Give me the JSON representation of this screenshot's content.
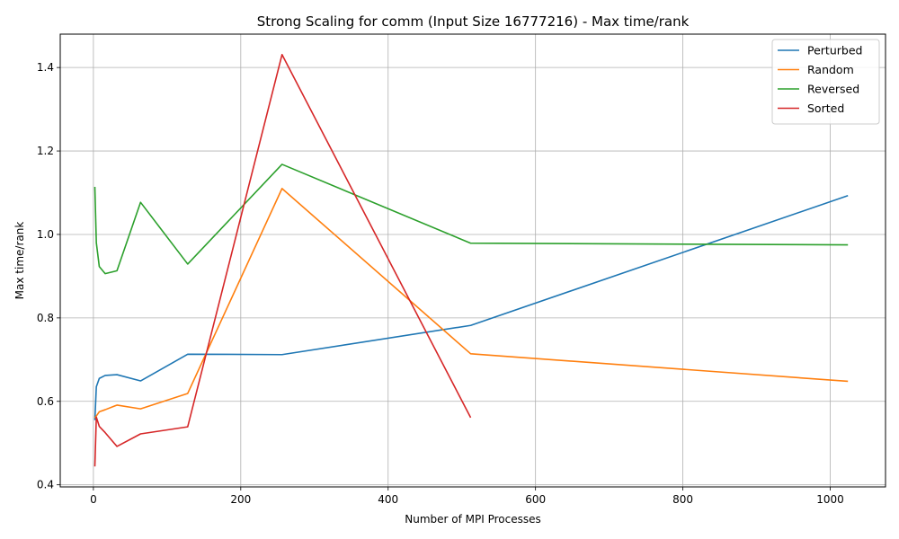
{
  "chart_data": {
    "type": "line",
    "title": "Strong Scaling for comm (Input Size 16777216) - Max time/rank",
    "xlabel": "Number of MPI Processes",
    "ylabel": "Max time/rank",
    "xlim": [
      -45,
      1075
    ],
    "ylim": [
      0.395,
      1.48
    ],
    "xticks": [
      0,
      200,
      400,
      600,
      800,
      1000
    ],
    "yticks": [
      0.4,
      0.6,
      0.8,
      1.0,
      1.2,
      1.4
    ],
    "xtick_labels": [
      "0",
      "200",
      "400",
      "600",
      "800",
      "1000"
    ],
    "ytick_labels": [
      "0.4",
      "0.6",
      "0.8",
      "1.0",
      "1.2",
      "1.4"
    ],
    "grid": true,
    "legend_position": "top-right",
    "x": [
      2,
      4,
      8,
      16,
      32,
      64,
      128,
      256,
      512,
      1024
    ],
    "series": [
      {
        "name": "Perturbed",
        "color": "#1f77b4",
        "values": [
          0.555,
          0.635,
          0.655,
          0.662,
          0.664,
          0.649,
          0.713,
          0.712,
          0.782,
          1.093
        ]
      },
      {
        "name": "Random",
        "color": "#ff7f0e",
        "values": [
          0.56,
          0.565,
          0.575,
          0.58,
          0.591,
          0.582,
          0.619,
          1.11,
          0.714,
          0.648
        ]
      },
      {
        "name": "Reversed",
        "color": "#2ca02c",
        "values": [
          1.114,
          0.98,
          0.923,
          0.906,
          0.913,
          1.077,
          0.929,
          1.168,
          0.979,
          0.975
        ]
      },
      {
        "name": "Sorted",
        "color": "#d62728",
        "values": [
          0.444,
          0.562,
          0.54,
          0.525,
          0.492,
          0.522,
          0.539,
          1.431,
          0.561,
          null
        ]
      }
    ]
  }
}
